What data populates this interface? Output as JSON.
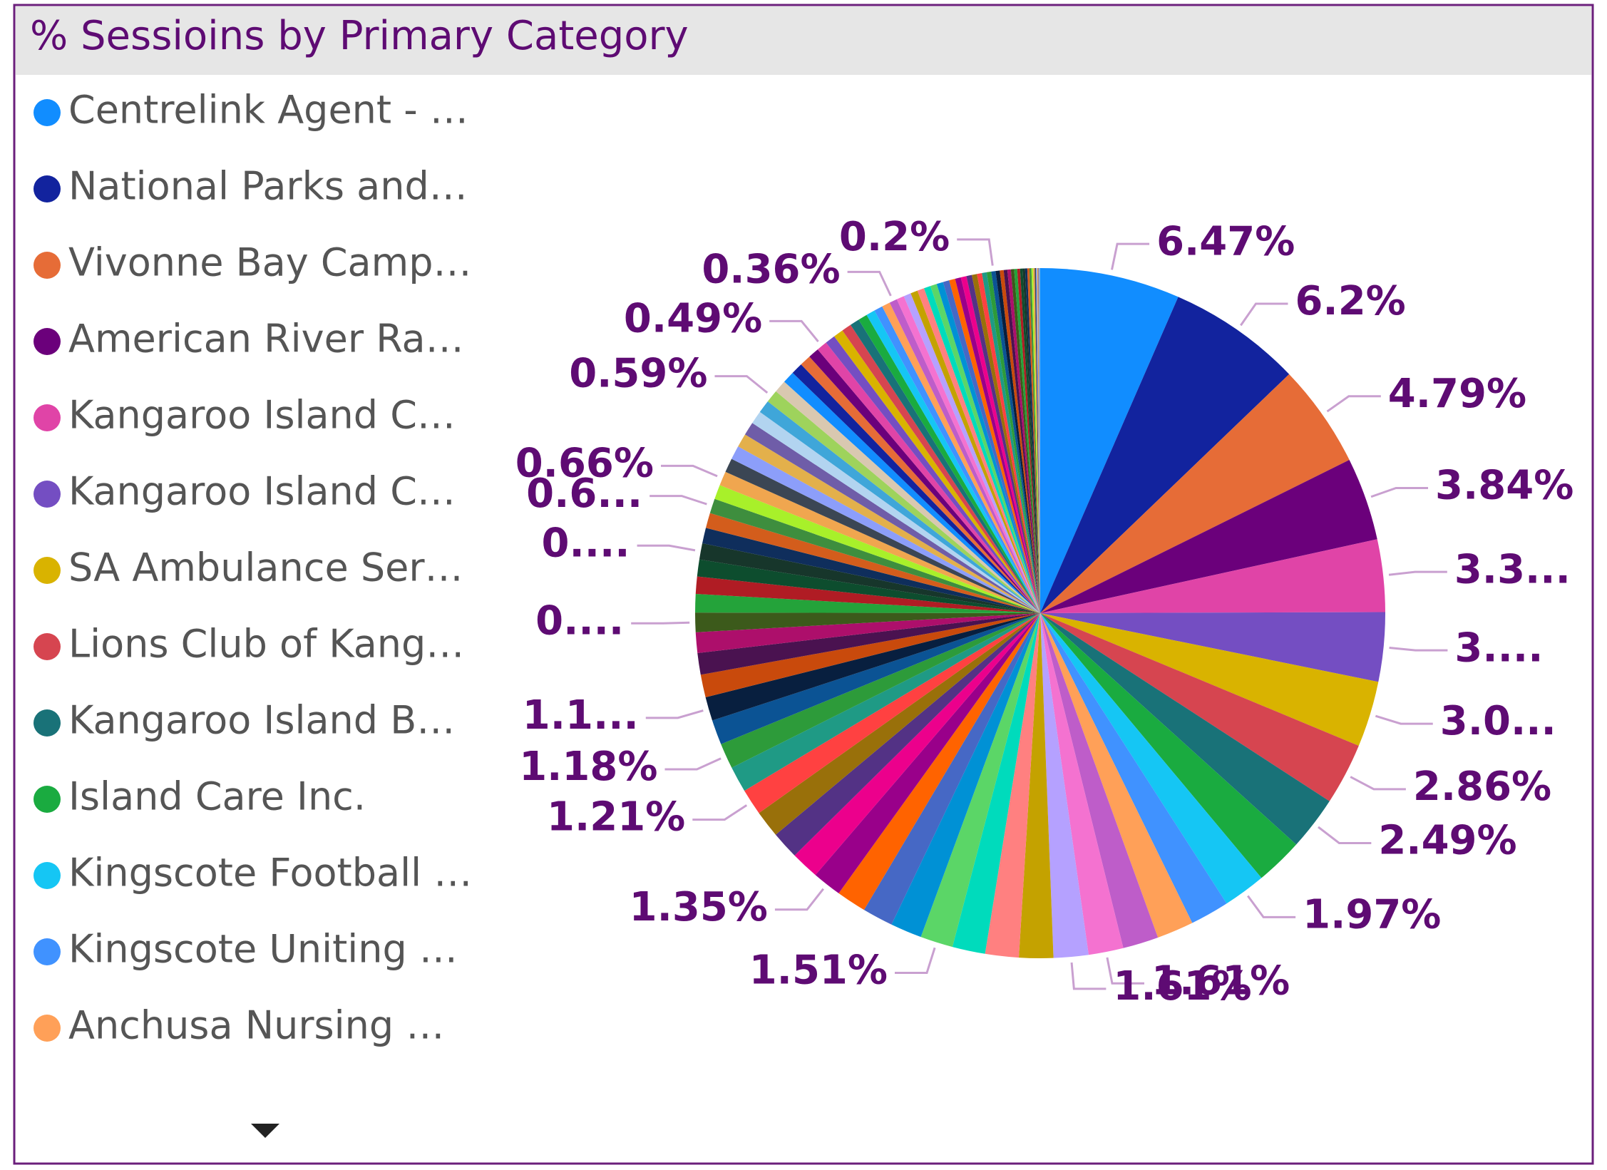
{
  "chart_data": {
    "type": "pie",
    "title": "% Sessioins by Primary Category",
    "categories": [
      "Centrelink Agent - …",
      "National Parks and…",
      "Vivonne Bay Camp…",
      "American River Ra…",
      "Kangaroo Island C…",
      "Kangaroo Island C…",
      "SA Ambulance Ser…",
      "Lions Club of Kang…",
      "Kangaroo Island B…",
      "Island Care Inc.",
      "Kingscote Football …",
      "Kingscote Uniting …",
      "Anchusa Nursing …",
      null,
      null,
      null,
      null,
      null,
      null,
      null,
      null,
      null,
      null,
      null,
      null,
      null,
      null,
      null,
      null,
      null,
      null,
      null,
      null,
      null,
      null,
      null,
      null,
      null,
      null,
      null,
      null,
      null,
      null,
      null,
      null,
      null,
      null,
      null,
      null,
      null,
      null,
      null,
      null,
      null,
      null,
      null,
      null,
      null,
      null,
      null,
      null,
      null,
      null,
      null,
      null,
      null,
      null,
      null,
      null,
      null,
      null,
      null,
      null,
      null,
      null,
      null,
      null,
      null,
      null,
      null,
      null,
      null,
      null,
      null,
      null,
      null,
      null,
      null,
      null,
      null,
      null,
      null,
      null,
      null,
      null,
      null,
      null,
      null,
      null,
      null,
      null,
      null,
      null,
      null
    ],
    "values": [
      6.47,
      6.2,
      4.79,
      3.84,
      3.35,
      3.2,
      3.05,
      2.86,
      2.49,
      2.2,
      1.97,
      1.8,
      1.7,
      1.65,
      1.61,
      1.61,
      1.58,
      1.55,
      1.52,
      1.51,
      1.45,
      1.42,
      1.38,
      1.35,
      1.3,
      1.28,
      1.25,
      1.21,
      1.2,
      1.18,
      1.15,
      1.1,
      1.05,
      1.0,
      0.95,
      0.9,
      0.85,
      0.8,
      0.78,
      0.75,
      0.72,
      0.7,
      0.68,
      0.67,
      0.66,
      0.65,
      0.64,
      0.63,
      0.62,
      0.61,
      0.6,
      0.59,
      0.58,
      0.56,
      0.54,
      0.52,
      0.5,
      0.49,
      0.47,
      0.46,
      0.45,
      0.44,
      0.42,
      0.41,
      0.4,
      0.38,
      0.36,
      0.35,
      0.34,
      0.33,
      0.32,
      0.31,
      0.3,
      0.3,
      0.29,
      0.28,
      0.27,
      0.26,
      0.25,
      0.24,
      0.23,
      0.22,
      0.21,
      0.2,
      0.19,
      0.18,
      0.17,
      0.16,
      0.15,
      0.14,
      0.13,
      0.12,
      0.11,
      0.1,
      0.1,
      0.09,
      0.08,
      0.07,
      0.06,
      0.05,
      0.05,
      0.04,
      0.03,
      0.02
    ],
    "value_labels": [
      "6.47%",
      "6.2%",
      "4.79%",
      "3.84%",
      "3.3...",
      "3....",
      "3.0...",
      "2.86%",
      "2.49%",
      null,
      "1.97%",
      null,
      null,
      null,
      "1.61%",
      "1.61%",
      null,
      null,
      null,
      "1.51%",
      null,
      null,
      null,
      "1.35%",
      null,
      null,
      null,
      "1.21%",
      null,
      "1.18%",
      null,
      "1.1...",
      null,
      null,
      null,
      "0....",
      null,
      null,
      null,
      "0....",
      null,
      null,
      "0.6...",
      null,
      "0.66%",
      null,
      null,
      null,
      null,
      null,
      null,
      "0.59%",
      null,
      null,
      null,
      null,
      null,
      "0.49%",
      null,
      null,
      null,
      null,
      null,
      null,
      null,
      null,
      "0.36%",
      null,
      null,
      null,
      null,
      null,
      null,
      null,
      null,
      null,
      null,
      null,
      null,
      null,
      null,
      null,
      null,
      "0.2%",
      null,
      null,
      null,
      null,
      null,
      null,
      null,
      null,
      null,
      null,
      null,
      null,
      null,
      null,
      null,
      null,
      null,
      null,
      null,
      null
    ],
    "palette": [
      "#118DFF",
      "#12239E",
      "#E66C37",
      "#6B007B",
      "#E044A7",
      "#744EC2",
      "#D9B300",
      "#D64550",
      "#197278",
      "#1AAB40",
      "#15C6F4",
      "#4092FF",
      "#FFA058",
      "#BE5DC9",
      "#F472D0",
      "#B5A1FF",
      "#C4A200",
      "#FF8080",
      "#00DBBC",
      "#5BD667",
      "#0091D5",
      "#4668C5",
      "#FF6300",
      "#99008A",
      "#EC008C",
      "#533285",
      "#99700A",
      "#FF4141",
      "#1F9A85",
      "#2D9B3A",
      "#0B5394",
      "#081F3F",
      "#C94A0C",
      "#4A1250",
      "#AD0F6B",
      "#3C5A1B",
      "#24A33A",
      "#B01C24",
      "#0D4D2E",
      "#17362B",
      "#0F2E5C",
      "#D35D1C",
      "#3E8E3E",
      "#A8F02A",
      "#F0A64F",
      "#3B4654",
      "#8C9EFA",
      "#E3B04B",
      "#6F5DA8",
      "#B2D4F0",
      "#3FA6D9",
      "#9ED35C",
      "#D9C8B0"
    ]
  }
}
